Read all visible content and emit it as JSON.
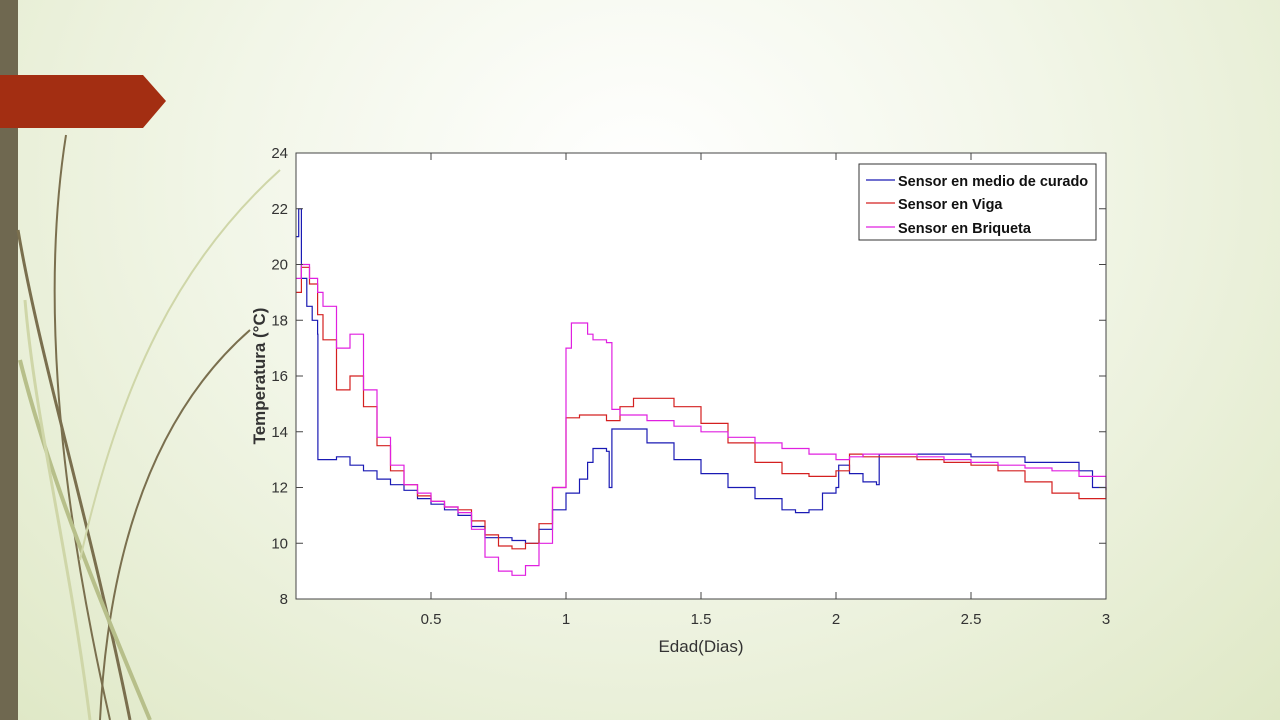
{
  "slide": {
    "accent_color": "#a32e12",
    "side_bar_color": "#6f6850",
    "swirl_colors": [
      "#7a6f4e",
      "#b7bf8a",
      "#cfd6a8"
    ]
  },
  "chart_data": {
    "type": "line",
    "title": "",
    "xlabel": "Edad(Dias)",
    "ylabel": "Temperatura (°C)",
    "xlim": [
      0,
      3
    ],
    "ylim": [
      8,
      24
    ],
    "x_ticks": [
      0.5,
      1,
      1.5,
      2,
      2.5,
      3
    ],
    "x_tick_labels": [
      "0.5",
      "1",
      "1.5",
      "2",
      "2.5",
      "3"
    ],
    "y_ticks": [
      8,
      10,
      12,
      14,
      16,
      18,
      20,
      22,
      24
    ],
    "y_tick_labels": [
      "8",
      "10",
      "12",
      "14",
      "16",
      "18",
      "20",
      "22",
      "24"
    ],
    "grid": false,
    "legend_position": "top-right",
    "series": [
      {
        "name": "Sensor en medio de curado",
        "color": "#1a1ab4",
        "x": [
          0,
          0.01,
          0.02,
          0.04,
          0.06,
          0.08,
          0.081,
          0.1,
          0.15,
          0.2,
          0.25,
          0.3,
          0.35,
          0.4,
          0.45,
          0.5,
          0.55,
          0.6,
          0.65,
          0.7,
          0.75,
          0.8,
          0.85,
          0.9,
          0.95,
          1,
          1.05,
          1.08,
          1.1,
          1.15,
          1.16,
          1.17,
          1.2,
          1.3,
          1.4,
          1.5,
          1.6,
          1.7,
          1.8,
          1.85,
          1.9,
          1.95,
          2,
          2.01,
          2.05,
          2.1,
          2.15,
          2.16,
          2.3,
          2.5,
          2.7,
          2.9,
          2.95,
          3
        ],
        "y": [
          21,
          22,
          19.5,
          18.5,
          18,
          17.5,
          13,
          13,
          13.1,
          12.8,
          12.6,
          12.3,
          12.1,
          11.9,
          11.6,
          11.4,
          11.2,
          11.0,
          10.6,
          10.2,
          10.2,
          10.1,
          10.0,
          10.5,
          11.2,
          11.8,
          12.3,
          12.9,
          13.4,
          13.3,
          12.0,
          14.1,
          14.1,
          13.6,
          13.0,
          12.5,
          12.0,
          11.6,
          11.2,
          11.1,
          11.2,
          11.8,
          12.0,
          12.8,
          12.5,
          12.2,
          12.1,
          13.2,
          13.2,
          13.1,
          12.9,
          12.6,
          12.0,
          11.9
        ]
      },
      {
        "name": "Sensor en Viga",
        "color": "#d42020",
        "x": [
          0,
          0.02,
          0.05,
          0.08,
          0.1,
          0.15,
          0.2,
          0.25,
          0.3,
          0.35,
          0.4,
          0.45,
          0.5,
          0.55,
          0.6,
          0.65,
          0.7,
          0.75,
          0.8,
          0.85,
          0.9,
          0.95,
          1,
          1.05,
          1.1,
          1.15,
          1.2,
          1.25,
          1.3,
          1.4,
          1.5,
          1.6,
          1.7,
          1.8,
          1.9,
          2,
          2.05,
          2.1,
          2.2,
          2.3,
          2.4,
          2.5,
          2.6,
          2.7,
          2.8,
          2.9,
          3
        ],
        "y": [
          19,
          19.9,
          19.3,
          18.2,
          17.3,
          15.5,
          16.0,
          14.9,
          13.5,
          12.6,
          12.1,
          11.7,
          11.5,
          11.3,
          11.2,
          10.8,
          10.3,
          9.9,
          9.8,
          10.0,
          10.7,
          12.0,
          14.5,
          14.6,
          14.6,
          14.4,
          14.9,
          15.2,
          15.2,
          14.9,
          14.3,
          13.6,
          12.9,
          12.5,
          12.4,
          12.6,
          13.2,
          13.1,
          13.1,
          13.0,
          12.9,
          12.8,
          12.6,
          12.2,
          11.8,
          11.6,
          12.0
        ]
      },
      {
        "name": "Sensor en Briqueta",
        "color": "#e020e0",
        "x": [
          0,
          0.02,
          0.05,
          0.08,
          0.1,
          0.15,
          0.2,
          0.25,
          0.3,
          0.35,
          0.4,
          0.45,
          0.5,
          0.55,
          0.6,
          0.65,
          0.7,
          0.75,
          0.8,
          0.85,
          0.9,
          0.95,
          1,
          1.02,
          1.05,
          1.08,
          1.1,
          1.15,
          1.17,
          1.2,
          1.3,
          1.4,
          1.5,
          1.6,
          1.7,
          1.8,
          1.9,
          2,
          2.05,
          2.1,
          2.2,
          2.3,
          2.4,
          2.5,
          2.6,
          2.7,
          2.8,
          2.9,
          3
        ],
        "y": [
          19.5,
          20.0,
          19.5,
          19.0,
          18.5,
          17.0,
          17.5,
          15.5,
          13.8,
          12.8,
          12.1,
          11.8,
          11.5,
          11.3,
          11.1,
          10.5,
          9.5,
          9.0,
          8.85,
          9.2,
          10.0,
          12.0,
          17.0,
          17.9,
          17.9,
          17.5,
          17.3,
          17.2,
          14.8,
          14.6,
          14.4,
          14.2,
          14.0,
          13.8,
          13.6,
          13.4,
          13.2,
          13.0,
          13.1,
          13.2,
          13.2,
          13.1,
          13.0,
          12.9,
          12.8,
          12.7,
          12.6,
          12.4,
          12.0
        ]
      }
    ]
  }
}
